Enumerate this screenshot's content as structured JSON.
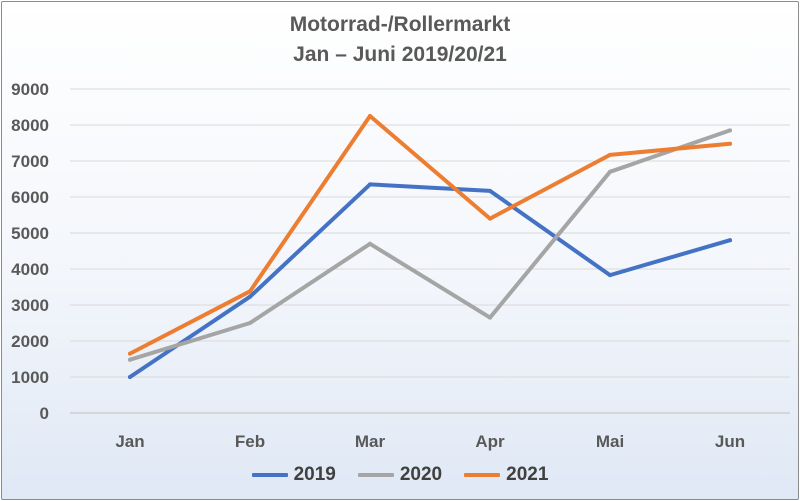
{
  "chart_data": {
    "type": "line",
    "title": "Motorrad-/Rollermarkt",
    "subtitle": "Jan – Juni 2019/20/21",
    "categories": [
      "Jan",
      "Feb",
      "Mar",
      "Apr",
      "Mai",
      "Jun"
    ],
    "ylim": [
      0,
      9000
    ],
    "yticks": [
      0,
      1000,
      2000,
      3000,
      4000,
      5000,
      6000,
      7000,
      8000,
      9000
    ],
    "grid": true,
    "legend": "bottom",
    "series": [
      {
        "name": "2019",
        "color": "#4472c4",
        "values": [
          1000,
          3230,
          6350,
          6170,
          3830,
          4800
        ]
      },
      {
        "name": "2020",
        "color": "#a5a5a5",
        "values": [
          1480,
          2500,
          4700,
          2650,
          6700,
          7850
        ]
      },
      {
        "name": "2021",
        "color": "#ed7d31",
        "values": [
          1650,
          3380,
          8250,
          5400,
          7170,
          7480
        ]
      }
    ]
  }
}
